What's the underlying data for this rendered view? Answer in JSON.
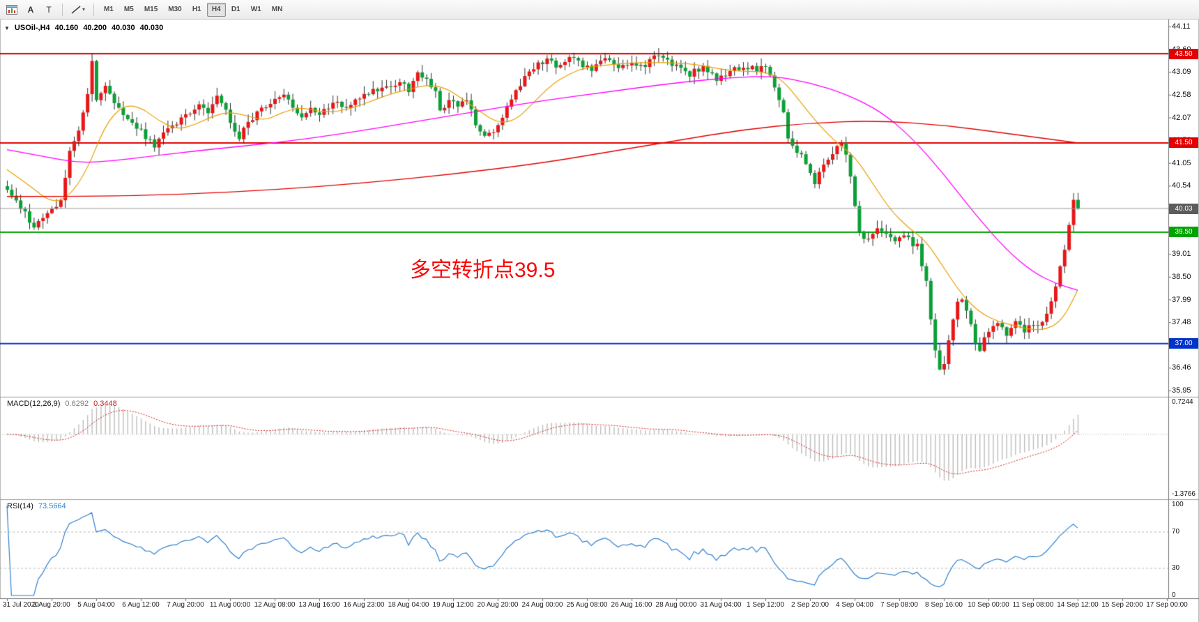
{
  "toolbar": {
    "chart_icon": "chart-window",
    "arrow_tool_label": "A",
    "text_tool_label": "T",
    "drawing_tool_caret": "▾",
    "timeframes": [
      "M1",
      "M5",
      "M15",
      "M30",
      "H1",
      "H4",
      "D1",
      "W1",
      "MN"
    ],
    "active_timeframe": "H4"
  },
  "chart": {
    "collapse_icon": "▼",
    "symbol_title": "USOil-,H4",
    "ohlc": {
      "open": "40.160",
      "high": "40.200",
      "low": "40.030",
      "close": "40.030"
    },
    "annotation": {
      "text": "多空转折点39.5",
      "color": "#ff0000"
    },
    "price_axis": {
      "max": 44.11,
      "min": 35.95,
      "labels": [
        "44.11",
        "43.60",
        "43.09",
        "42.58",
        "42.07",
        "41.56",
        "41.05",
        "40.54",
        "40.03",
        "39.52",
        "39.01",
        "38.50",
        "37.99",
        "37.48",
        "36.97",
        "36.46",
        "35.95"
      ]
    },
    "hlines": [
      {
        "price": 43.5,
        "label": "43.50",
        "color": "#e30000",
        "badge_color": "#e30000",
        "width": 2,
        "role": "resistance-line"
      },
      {
        "price": 41.5,
        "label": "41.50",
        "color": "#e30000",
        "badge_color": "#e30000",
        "width": 2,
        "role": "resistance-line"
      },
      {
        "price": 40.03,
        "label": "40.03",
        "color": "#9b9b9b",
        "badge_color": "#5c5c5c",
        "width": 1,
        "role": "current-price-line"
      },
      {
        "price": 39.5,
        "label": "39.50",
        "color": "#00a400",
        "badge_color": "#00a400",
        "width": 2,
        "role": "pivot-line"
      },
      {
        "price": 37.0,
        "label": "37.00",
        "color": "#0032cc",
        "badge_color": "#0032cc",
        "width": 2,
        "role": "support-line"
      }
    ]
  },
  "macd": {
    "title": "MACD(12,26,9)",
    "value_main": "0.6292",
    "value_signal": "0.3448",
    "axis_max": 0.7244,
    "axis_min": -1.3766,
    "histogram_color": "#bdbdbd",
    "signal_color": "#d42020"
  },
  "rsi": {
    "title": "RSI(14)",
    "value": "73.5664",
    "period": 14,
    "levels": [
      70,
      30
    ],
    "axis_values": [
      100,
      70,
      30,
      0
    ],
    "line_color": "#2f80d0"
  },
  "time_axis": {
    "bars_per_label": 10,
    "labels": [
      "31 Jul 2020",
      "3 Aug 20:00",
      "5 Aug 04:00",
      "6 Aug 12:00",
      "7 Aug 20:00",
      "11 Aug 00:00",
      "12 Aug 08:00",
      "13 Aug 16:00",
      "16 Aug 23:00",
      "18 Aug 04:00",
      "19 Aug 12:00",
      "20 Aug 20:00",
      "24 Aug 00:00",
      "25 Aug 08:00",
      "26 Aug 16:00",
      "28 Aug 00:00",
      "31 Aug 04:00",
      "1 Sep 12:00",
      "2 Sep 20:00",
      "4 Sep 04:00",
      "7 Sep 08:00",
      "8 Sep 16:00",
      "10 Sep 00:00",
      "11 Sep 08:00",
      "14 Sep 12:00",
      "15 Sep 20:00",
      "17 Sep 00:00"
    ]
  },
  "chart_data": {
    "type": "candlestick",
    "symbol": "USOil-",
    "timeframe": "H4",
    "bars": 241,
    "ylim": [
      35.95,
      44.11
    ],
    "bull_color": "#e81717",
    "bear_color": "#0aa136",
    "wick_color": "#2d2d2d",
    "price_waypoints": [
      [
        0,
        40.45
      ],
      [
        3,
        40.05
      ],
      [
        6,
        39.62
      ],
      [
        9,
        39.95
      ],
      [
        12,
        40.15
      ],
      [
        14,
        41.3
      ],
      [
        16,
        41.8
      ],
      [
        18,
        42.55
      ],
      [
        19,
        43.3
      ],
      [
        20,
        42.5
      ],
      [
        22,
        42.8
      ],
      [
        24,
        42.45
      ],
      [
        27,
        42.05
      ],
      [
        30,
        41.75
      ],
      [
        33,
        41.45
      ],
      [
        36,
        41.8
      ],
      [
        40,
        42.1
      ],
      [
        43,
        42.4
      ],
      [
        45,
        42.15
      ],
      [
        47,
        42.55
      ],
      [
        50,
        42.0
      ],
      [
        52,
        41.6
      ],
      [
        54,
        41.95
      ],
      [
        57,
        42.3
      ],
      [
        60,
        42.45
      ],
      [
        62,
        42.6
      ],
      [
        64,
        42.25
      ],
      [
        66,
        42.05
      ],
      [
        68,
        42.3
      ],
      [
        70,
        42.1
      ],
      [
        73,
        42.4
      ],
      [
        76,
        42.3
      ],
      [
        79,
        42.55
      ],
      [
        82,
        42.65
      ],
      [
        85,
        42.75
      ],
      [
        88,
        42.85
      ],
      [
        90,
        42.7
      ],
      [
        92,
        43.1
      ],
      [
        94,
        42.9
      ],
      [
        96,
        42.6
      ],
      [
        97,
        42.2
      ],
      [
        99,
        42.5
      ],
      [
        101,
        42.35
      ],
      [
        103,
        42.5
      ],
      [
        105,
        41.95
      ],
      [
        107,
        41.6
      ],
      [
        109,
        41.75
      ],
      [
        111,
        42.1
      ],
      [
        113,
        42.45
      ],
      [
        115,
        42.8
      ],
      [
        117,
        43.1
      ],
      [
        119,
        43.25
      ],
      [
        121,
        43.35
      ],
      [
        124,
        43.2
      ],
      [
        126,
        43.45
      ],
      [
        128,
        43.3
      ],
      [
        131,
        43.15
      ],
      [
        134,
        43.35
      ],
      [
        137,
        43.2
      ],
      [
        140,
        43.3
      ],
      [
        143,
        43.25
      ],
      [
        145,
        43.4
      ],
      [
        147,
        43.45
      ],
      [
        150,
        43.2
      ],
      [
        153,
        43.05
      ],
      [
        156,
        43.2
      ],
      [
        159,
        42.95
      ],
      [
        162,
        43.1
      ],
      [
        165,
        43.2
      ],
      [
        168,
        43.15
      ],
      [
        170,
        43.2
      ],
      [
        172,
        42.75
      ],
      [
        174,
        42.2
      ],
      [
        175,
        41.65
      ],
      [
        176,
        41.45
      ],
      [
        178,
        41.2
      ],
      [
        180,
        40.85
      ],
      [
        181,
        40.6
      ],
      [
        183,
        41.05
      ],
      [
        185,
        41.3
      ],
      [
        187,
        41.48
      ],
      [
        188,
        41.3
      ],
      [
        189,
        40.7
      ],
      [
        190,
        40.1
      ],
      [
        191,
        39.45
      ],
      [
        193,
        39.3
      ],
      [
        195,
        39.55
      ],
      [
        197,
        39.4
      ],
      [
        199,
        39.3
      ],
      [
        201,
        39.45
      ],
      [
        203,
        39.2
      ],
      [
        204,
        39.3
      ],
      [
        205,
        38.75
      ],
      [
        206,
        38.35
      ],
      [
        207,
        37.6
      ],
      [
        208,
        36.9
      ],
      [
        209,
        36.45
      ],
      [
        210,
        36.6
      ],
      [
        211,
        37.1
      ],
      [
        212,
        37.6
      ],
      [
        213,
        37.95
      ],
      [
        214,
        38.05
      ],
      [
        215,
        37.7
      ],
      [
        216,
        37.4
      ],
      [
        217,
        37.05
      ],
      [
        218,
        36.8
      ],
      [
        219,
        37.1
      ],
      [
        220,
        37.25
      ],
      [
        222,
        37.45
      ],
      [
        224,
        37.2
      ],
      [
        226,
        37.5
      ],
      [
        228,
        37.3
      ],
      [
        230,
        37.45
      ],
      [
        231,
        37.35
      ],
      [
        233,
        37.7
      ],
      [
        235,
        38.3
      ],
      [
        237,
        39.1
      ],
      [
        238,
        39.6
      ],
      [
        239,
        40.16
      ],
      [
        240,
        40.03
      ]
    ],
    "moving_averages": [
      {
        "name": "ma-fast",
        "color": "#e8a000",
        "width": 1.2,
        "path": [
          [
            0,
            40.9
          ],
          [
            5,
            40.55
          ],
          [
            10,
            40.15
          ],
          [
            14,
            40.3
          ],
          [
            18,
            40.9
          ],
          [
            22,
            41.9
          ],
          [
            26,
            42.35
          ],
          [
            30,
            42.3
          ],
          [
            34,
            42.0
          ],
          [
            38,
            41.8
          ],
          [
            42,
            41.9
          ],
          [
            46,
            42.1
          ],
          [
            50,
            42.2
          ],
          [
            54,
            42.1
          ],
          [
            58,
            42.0
          ],
          [
            62,
            42.2
          ],
          [
            66,
            42.3
          ],
          [
            70,
            42.2
          ],
          [
            74,
            42.2
          ],
          [
            78,
            42.3
          ],
          [
            82,
            42.45
          ],
          [
            86,
            42.6
          ],
          [
            90,
            42.7
          ],
          [
            94,
            42.8
          ],
          [
            98,
            42.75
          ],
          [
            102,
            42.5
          ],
          [
            106,
            42.2
          ],
          [
            110,
            41.95
          ],
          [
            114,
            42.0
          ],
          [
            118,
            42.4
          ],
          [
            122,
            42.8
          ],
          [
            126,
            43.05
          ],
          [
            130,
            43.2
          ],
          [
            135,
            43.25
          ],
          [
            140,
            43.3
          ],
          [
            145,
            43.3
          ],
          [
            150,
            43.3
          ],
          [
            155,
            43.25
          ],
          [
            160,
            43.15
          ],
          [
            165,
            43.1
          ],
          [
            170,
            43.1
          ],
          [
            174,
            42.9
          ],
          [
            178,
            42.4
          ],
          [
            182,
            41.9
          ],
          [
            186,
            41.5
          ],
          [
            190,
            41.2
          ],
          [
            194,
            40.6
          ],
          [
            198,
            40.0
          ],
          [
            202,
            39.6
          ],
          [
            206,
            39.3
          ],
          [
            210,
            38.7
          ],
          [
            214,
            38.1
          ],
          [
            218,
            37.7
          ],
          [
            222,
            37.5
          ],
          [
            226,
            37.4
          ],
          [
            230,
            37.3
          ],
          [
            234,
            37.35
          ],
          [
            237,
            37.6
          ],
          [
            240,
            38.2
          ]
        ]
      },
      {
        "name": "ma-medium",
        "color": "#ff00ff",
        "width": 1.3,
        "path": [
          [
            0,
            41.35
          ],
          [
            8,
            41.2
          ],
          [
            16,
            41.05
          ],
          [
            24,
            41.1
          ],
          [
            32,
            41.2
          ],
          [
            45,
            41.35
          ],
          [
            60,
            41.5
          ],
          [
            75,
            41.7
          ],
          [
            90,
            41.95
          ],
          [
            105,
            42.2
          ],
          [
            120,
            42.45
          ],
          [
            135,
            42.65
          ],
          [
            150,
            42.85
          ],
          [
            163,
            42.97
          ],
          [
            172,
            43.0
          ],
          [
            180,
            42.85
          ],
          [
            188,
            42.6
          ],
          [
            196,
            42.2
          ],
          [
            203,
            41.6
          ],
          [
            210,
            40.8
          ],
          [
            217,
            39.9
          ],
          [
            224,
            39.1
          ],
          [
            230,
            38.6
          ],
          [
            235,
            38.35
          ],
          [
            240,
            38.2
          ]
        ]
      },
      {
        "name": "ma-slow",
        "color": "#e30000",
        "width": 1.4,
        "path": [
          [
            0,
            40.3
          ],
          [
            20,
            40.3
          ],
          [
            40,
            40.35
          ],
          [
            60,
            40.45
          ],
          [
            80,
            40.6
          ],
          [
            100,
            40.8
          ],
          [
            120,
            41.05
          ],
          [
            135,
            41.3
          ],
          [
            150,
            41.55
          ],
          [
            165,
            41.8
          ],
          [
            180,
            41.95
          ],
          [
            195,
            42.0
          ],
          [
            210,
            41.9
          ],
          [
            225,
            41.7
          ],
          [
            240,
            41.5
          ]
        ]
      }
    ]
  }
}
